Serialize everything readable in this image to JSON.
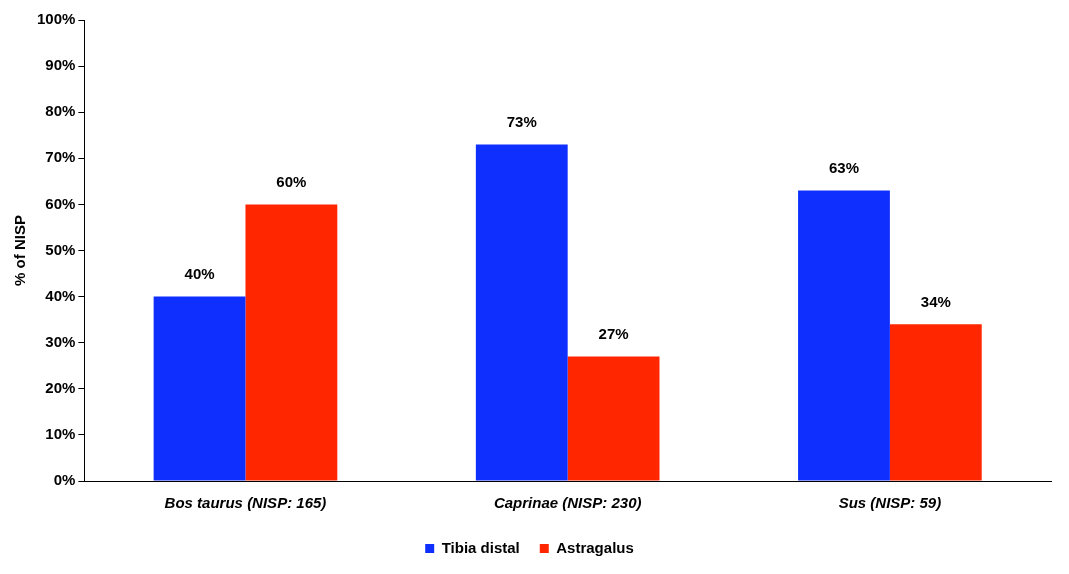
{
  "chart_data": {
    "type": "bar",
    "ylabel": "% of NISP",
    "categories": [
      "Bos taurus (NISP: 165)",
      "Caprinae (NISP: 230)",
      "Sus (NISP: 59)"
    ],
    "series": [
      {
        "name": "Tibia distal",
        "color": "#0f2fff",
        "values": [
          40,
          73,
          63
        ],
        "value_labels": [
          "40%",
          "73%",
          "63%"
        ]
      },
      {
        "name": "Astragalus",
        "color": "#ff2600",
        "values": [
          60,
          27,
          34
        ],
        "value_labels": [
          "60%",
          "27%",
          "34%"
        ]
      }
    ],
    "ylim": [
      0,
      100
    ],
    "yticks": [
      {
        "value": 0,
        "label": "0%"
      },
      {
        "value": 10,
        "label": "10%"
      },
      {
        "value": 20,
        "label": "20%"
      },
      {
        "value": 30,
        "label": "30%"
      },
      {
        "value": 40,
        "label": "40%"
      },
      {
        "value": 50,
        "label": "50%"
      },
      {
        "value": 60,
        "label": "60%"
      },
      {
        "value": 70,
        "label": "70%"
      },
      {
        "value": 80,
        "label": "80%"
      },
      {
        "value": 90,
        "label": "90%"
      },
      {
        "value": 100,
        "label": "100%"
      }
    ],
    "grid": false,
    "legend": "bottom"
  }
}
